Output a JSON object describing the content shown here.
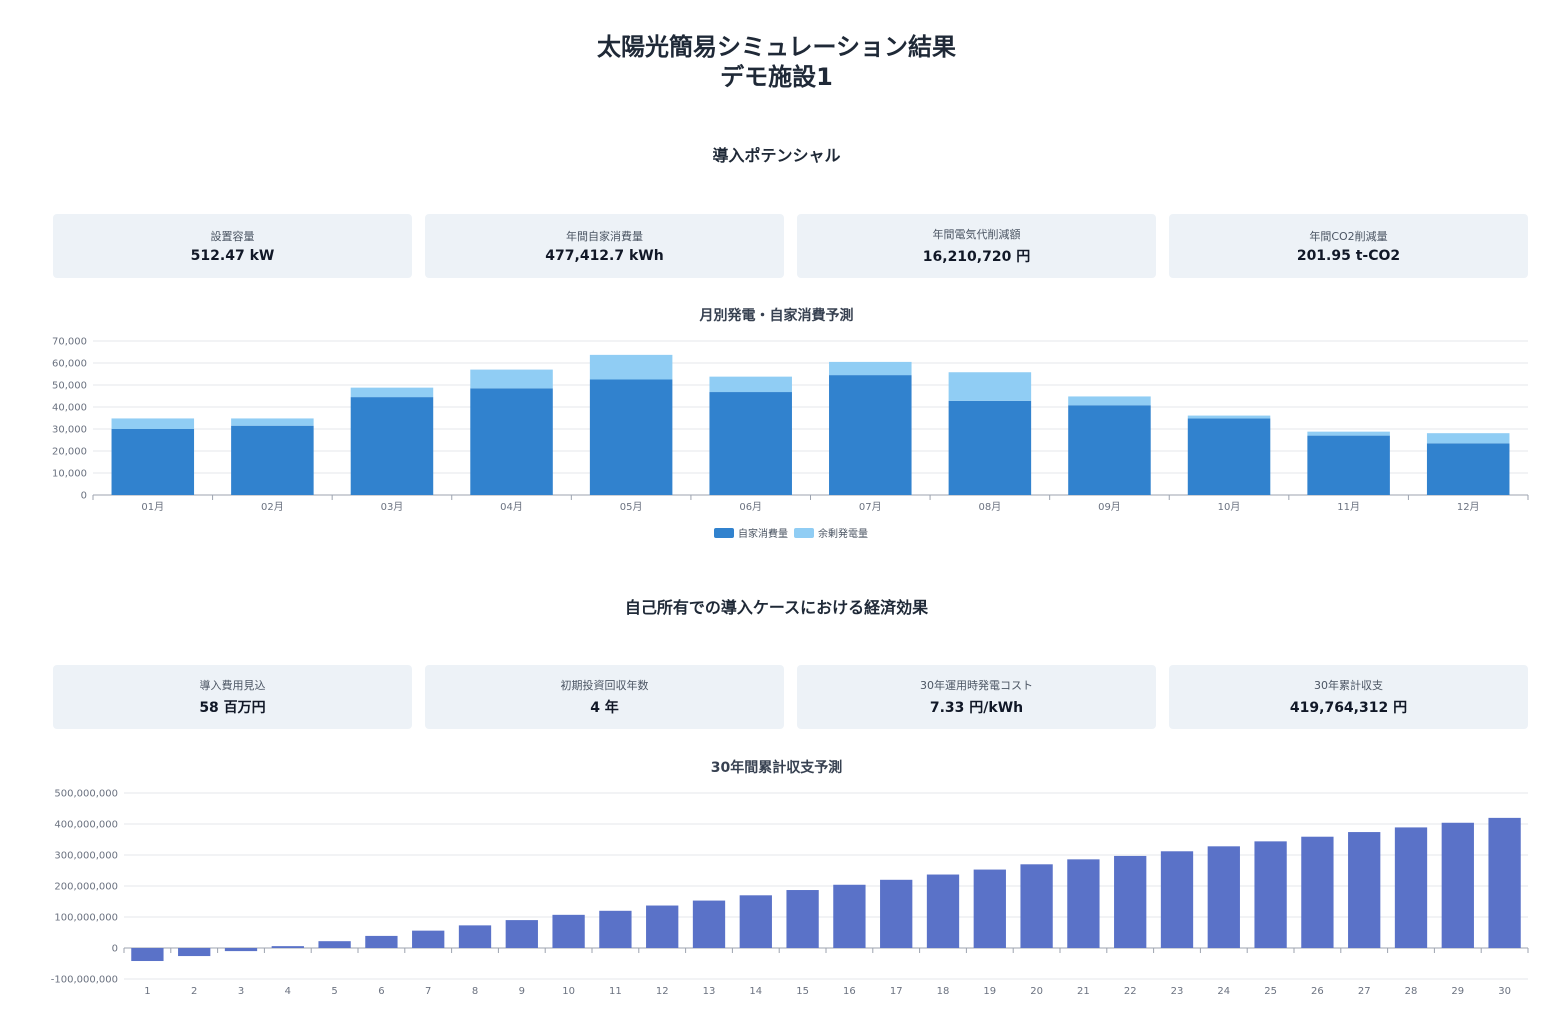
{
  "header": {
    "title": "太陽光簡易シミュレーション結果",
    "facility": "デモ施設1"
  },
  "potential": {
    "section_title": "導入ポテンシャル",
    "cards": [
      {
        "label": "設置容量",
        "value": "512.47 kW"
      },
      {
        "label": "年間自家消費量",
        "value": "477,412.7 kWh"
      },
      {
        "label": "年間電気代削減額",
        "value": "16,210,720 円"
      },
      {
        "label": "年間CO2削減量",
        "value": "201.95 t-CO2"
      }
    ]
  },
  "economics": {
    "section_title": "自己所有での導入ケースにおける経済効果",
    "cards": [
      {
        "label": "導入費用見込",
        "value": "58 百万円"
      },
      {
        "label": "初期投資回収年数",
        "value": "4 年"
      },
      {
        "label": "30年運用時発電コスト",
        "value": "7.33 円/kWh"
      },
      {
        "label": "30年累計収支",
        "value": "419,764,312 円"
      }
    ]
  },
  "chart_data": [
    {
      "type": "bar",
      "stacked": true,
      "title": "月別発電・自家消費予測",
      "categories": [
        "01月",
        "02月",
        "03月",
        "04月",
        "05月",
        "06月",
        "07月",
        "08月",
        "09月",
        "10月",
        "11月",
        "12月"
      ],
      "series": [
        {
          "name": "自家消費量",
          "color": "#3182ce",
          "values": [
            30000,
            31500,
            44500,
            48500,
            52500,
            46800,
            54500,
            42800,
            40800,
            34800,
            27000,
            23500
          ]
        },
        {
          "name": "余剰発電量",
          "color": "#90cdf4",
          "values": [
            4800,
            3300,
            4300,
            8500,
            11200,
            7000,
            6000,
            13000,
            4000,
            1300,
            1800,
            4600
          ]
        }
      ],
      "yticks": [
        0,
        10000,
        20000,
        30000,
        40000,
        50000,
        60000,
        70000
      ],
      "ytick_labels": [
        "0",
        "10,000",
        "20,000",
        "30,000",
        "40,000",
        "50,000",
        "60,000",
        "70,000"
      ],
      "ylim": [
        0,
        70000
      ],
      "grid": true,
      "legend": "bottom"
    },
    {
      "type": "bar",
      "title": "30年間累計収支予測",
      "categories": [
        "1",
        "2",
        "3",
        "4",
        "5",
        "6",
        "7",
        "8",
        "9",
        "10",
        "11",
        "12",
        "13",
        "14",
        "15",
        "16",
        "17",
        "18",
        "19",
        "20",
        "21",
        "22",
        "23",
        "24",
        "25",
        "26",
        "27",
        "28",
        "29",
        "30"
      ],
      "series": [
        {
          "color": "#5a72c8",
          "values": [
            -42000000,
            -26000000,
            -10000000,
            6000000,
            22000000,
            39000000,
            56000000,
            73000000,
            90000000,
            107000000,
            120000000,
            137000000,
            153000000,
            170000000,
            187000000,
            204000000,
            220000000,
            237000000,
            253000000,
            270000000,
            286000000,
            297000000,
            312000000,
            328000000,
            344000000,
            359000000,
            374000000,
            389000000,
            404000000,
            419764312
          ]
        }
      ],
      "yticks": [
        -100000000,
        0,
        100000000,
        200000000,
        300000000,
        400000000,
        500000000
      ],
      "ytick_labels": [
        "-100,000,000",
        "0",
        "100,000,000",
        "200,000,000",
        "300,000,000",
        "400,000,000",
        "500,000,000"
      ],
      "ylim": [
        -100000000,
        500000000
      ],
      "grid": true
    }
  ]
}
